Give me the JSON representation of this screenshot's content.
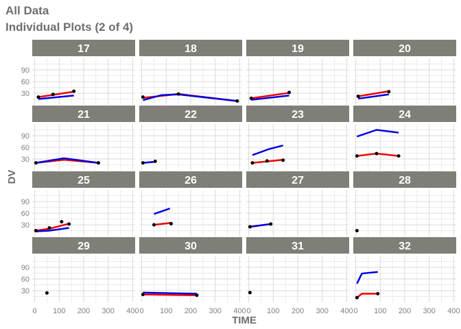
{
  "title": "All Data",
  "subtitle": "Individual Plots (2 of 4)",
  "colors": {
    "observed_points": "#000000",
    "pred": "#ee0000",
    "ipred": "#0000dd",
    "strip_bg": "#7f7e77",
    "strip_text": "#ffffff",
    "grid": "#d9d9d9",
    "axis_text": "#7f7f7f"
  },
  "chart_data": {
    "type": "line",
    "facet_layout": "4x4",
    "xlabel": "TIME",
    "ylabel": "DV",
    "xlim": [
      -10,
      410
    ],
    "ylim": [
      0,
      120
    ],
    "xticks": [
      0,
      100,
      200,
      300,
      400
    ],
    "yticks": [
      30,
      60,
      90
    ],
    "grid": true,
    "legend": "none",
    "panels": [
      {
        "id": "17",
        "observed": [
          [
            15,
            20
          ],
          [
            75,
            27
          ],
          [
            160,
            35
          ]
        ],
        "pred": [
          [
            15,
            20
          ],
          [
            160,
            34
          ]
        ],
        "ipred": [
          [
            15,
            15
          ],
          [
            160,
            24
          ]
        ]
      },
      {
        "id": "18",
        "observed": [
          [
            5,
            20
          ],
          [
            150,
            28
          ],
          [
            390,
            10
          ]
        ],
        "pred": [
          [
            5,
            18
          ],
          [
            150,
            28
          ],
          [
            390,
            10
          ]
        ],
        "ipred": [
          [
            5,
            12
          ],
          [
            80,
            25
          ],
          [
            150,
            27
          ],
          [
            390,
            10
          ]
        ]
      },
      {
        "id": "19",
        "observed": [
          [
            10,
            17
          ],
          [
            165,
            32
          ]
        ],
        "pred": [
          [
            10,
            17
          ],
          [
            165,
            31
          ]
        ],
        "ipred": [
          [
            10,
            13
          ],
          [
            165,
            24
          ]
        ]
      },
      {
        "id": "20",
        "observed": [
          [
            10,
            22
          ],
          [
            135,
            34
          ]
        ],
        "pred": [
          [
            10,
            22
          ],
          [
            135,
            35
          ]
        ],
        "ipred": [
          [
            10,
            16
          ],
          [
            135,
            27
          ]
        ]
      },
      {
        "id": "21",
        "observed": [
          [
            5,
            20
          ],
          [
            260,
            20
          ]
        ],
        "pred": [
          [
            5,
            20
          ],
          [
            120,
            28
          ],
          [
            260,
            20
          ]
        ],
        "ipred": [
          [
            5,
            20
          ],
          [
            120,
            32
          ],
          [
            260,
            20
          ]
        ]
      },
      {
        "id": "22",
        "observed": [
          [
            5,
            20
          ],
          [
            55,
            24
          ]
        ],
        "pred": [
          [
            5,
            20
          ],
          [
            55,
            23
          ]
        ],
        "ipred": [
          [
            5,
            20
          ],
          [
            55,
            23
          ]
        ]
      },
      {
        "id": "23",
        "observed": [
          [
            15,
            20
          ],
          [
            75,
            25
          ],
          [
            140,
            27
          ]
        ],
        "pred": [
          [
            15,
            20
          ],
          [
            140,
            28
          ]
        ],
        "ipred": [
          [
            15,
            40
          ],
          [
            80,
            55
          ],
          [
            140,
            65
          ]
        ]
      },
      {
        "id": "24",
        "observed": [
          [
            5,
            38
          ],
          [
            85,
            44
          ],
          [
            175,
            38
          ]
        ],
        "pred": [
          [
            5,
            38
          ],
          [
            85,
            44
          ],
          [
            175,
            38
          ]
        ],
        "ipred": [
          [
            5,
            88
          ],
          [
            85,
            105
          ],
          [
            175,
            98
          ]
        ]
      },
      {
        "id": "25",
        "observed": [
          [
            5,
            15
          ],
          [
            60,
            22
          ],
          [
            110,
            38
          ],
          [
            140,
            32
          ]
        ],
        "pred": [
          [
            5,
            15
          ],
          [
            60,
            20
          ],
          [
            140,
            33
          ]
        ],
        "ipred": [
          [
            5,
            13
          ],
          [
            60,
            15
          ],
          [
            140,
            22
          ]
        ]
      },
      {
        "id": "26",
        "observed": [
          [
            50,
            30
          ],
          [
            120,
            33
          ]
        ],
        "pred": [
          [
            50,
            30
          ],
          [
            120,
            35
          ]
        ],
        "ipred": [
          [
            50,
            58
          ],
          [
            115,
            72
          ]
        ]
      },
      {
        "id": "27",
        "observed": [
          [
            5,
            25
          ],
          [
            90,
            32
          ]
        ],
        "pred": [
          [
            5,
            25
          ],
          [
            90,
            32
          ]
        ],
        "ipred": [
          [
            5,
            25
          ],
          [
            90,
            32
          ]
        ]
      },
      {
        "id": "28",
        "observed": [
          [
            5,
            15
          ]
        ],
        "pred": [],
        "ipred": []
      },
      {
        "id": "29",
        "observed": [
          [
            50,
            24
          ]
        ],
        "pred": [],
        "ipred": []
      },
      {
        "id": "30",
        "observed": [
          [
            5,
            20
          ],
          [
            225,
            18
          ]
        ],
        "pred": [
          [
            5,
            20
          ],
          [
            225,
            18
          ]
        ],
        "ipred": [
          [
            5,
            25
          ],
          [
            225,
            22
          ]
        ]
      },
      {
        "id": "31",
        "observed": [
          [
            5,
            25
          ]
        ],
        "pred": [],
        "ipred": []
      },
      {
        "id": "32",
        "observed": [
          [
            5,
            12
          ],
          [
            90,
            22
          ]
        ],
        "pred": [
          [
            5,
            12
          ],
          [
            25,
            22
          ],
          [
            90,
            22
          ]
        ],
        "ipred": [
          [
            5,
            48
          ],
          [
            25,
            74
          ],
          [
            90,
            78
          ]
        ]
      }
    ]
  }
}
